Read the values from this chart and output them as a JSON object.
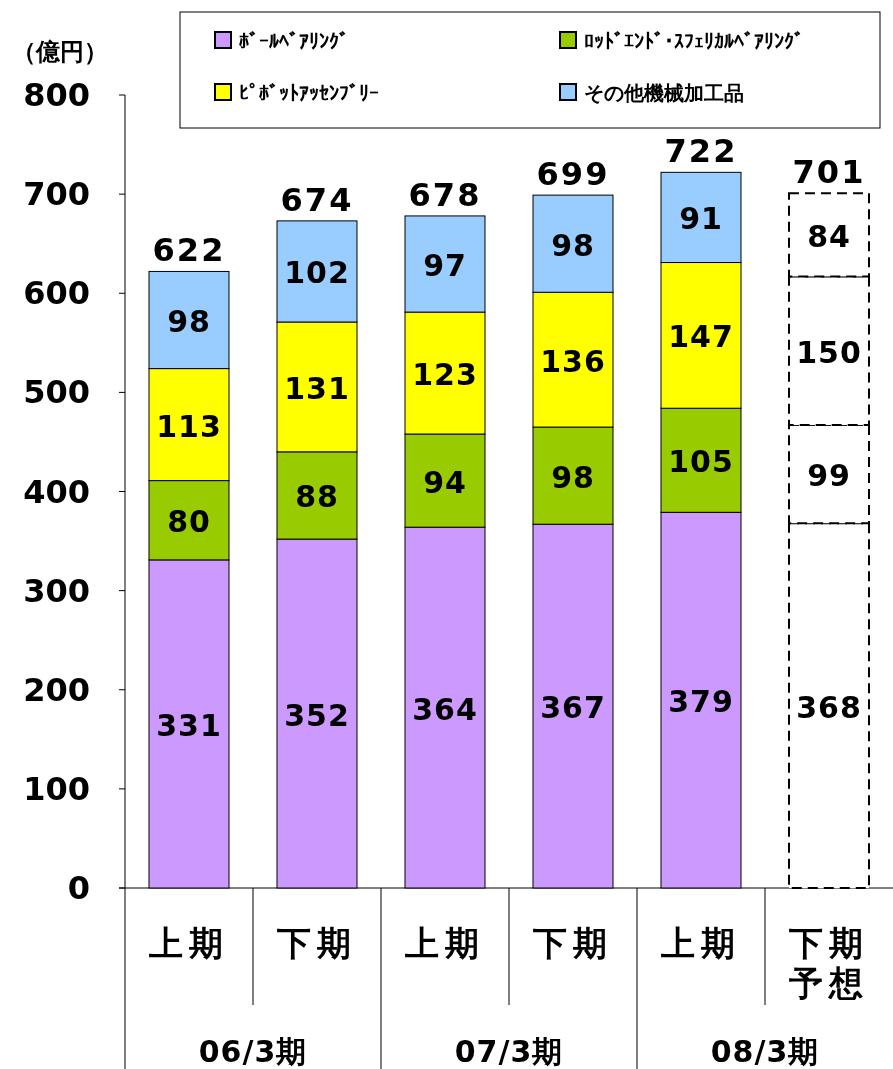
{
  "chart_data": {
    "type": "bar",
    "stacked": true,
    "ylabel": "（億円）",
    "ylim": [
      0,
      800
    ],
    "yticks": [
      0,
      100,
      200,
      300,
      400,
      500,
      600,
      700,
      800
    ],
    "categories": [
      "上期",
      "下期",
      "上期",
      "下期",
      "上期",
      "下期予想"
    ],
    "annotations": [
      "06/3期",
      "07/3期",
      "08/3期"
    ],
    "series": [
      {
        "name": "ﾎﾞｰﾙﾍﾞｱﾘﾝｸﾞ",
        "color": "#cc99ff",
        "colors": [
          "#cc99ff",
          "#cc99ff",
          "#cc99ff",
          "#cc99ff",
          "#cc99ff",
          "#ffffff"
        ],
        "values": [
          331,
          352,
          364,
          367,
          379,
          368
        ]
      },
      {
        "name": "ﾛｯﾄﾞｴﾝﾄﾞ･ｽﾌｪﾘｶﾙﾍﾞｱﾘﾝｸﾞ",
        "color": "#99cc00",
        "colors": [
          "#99cc00",
          "#99cc00",
          "#99cc00",
          "#99cc00",
          "#99cc00",
          "#ffffff"
        ],
        "values": [
          80,
          88,
          94,
          98,
          105,
          99
        ]
      },
      {
        "name": "ﾋﾟﾎﾞｯﾄｱｯｾﾝﾌﾞﾘｰ",
        "color": "#ffff00",
        "colors": [
          "#ffff00",
          "#ffff00",
          "#ffff00",
          "#ffff00",
          "#ffff00",
          "#ffffff"
        ],
        "values": [
          113,
          131,
          123,
          136,
          147,
          150
        ]
      },
      {
        "name": "その他機械加工品",
        "color": "#99ccff",
        "colors": [
          "#99ccff",
          "#99ccff",
          "#99ccff",
          "#99ccff",
          "#99ccff",
          "#ffffff"
        ],
        "values": [
          98,
          102,
          97,
          98,
          91,
          84
        ]
      }
    ],
    "data_labels": true,
    "totals": [
      "622",
      "674",
      "678",
      "699",
      "722",
      "701"
    ],
    "legend": "top",
    "grid": false
  }
}
